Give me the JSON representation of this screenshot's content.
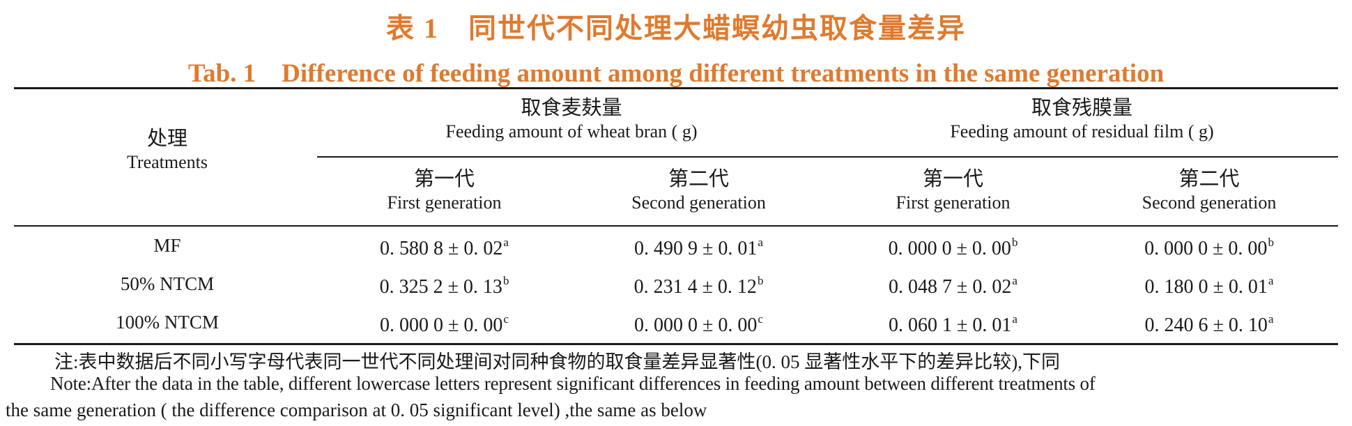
{
  "title": {
    "zh": "表 1　同世代不同处理大蜡螟幼虫取食量差异",
    "en": "Tab. 1　Difference of feeding amount among different treatments in the same generation"
  },
  "header": {
    "treatments_zh": "处理",
    "treatments_en": "Treatments",
    "group1_zh": "取食麦麸量",
    "group1_en": "Feeding amount of wheat bran ( g)",
    "group2_zh": "取食残膜量",
    "group2_en": "Feeding amount of residual film ( g)",
    "first_gen_zh": "第一代",
    "first_gen_en": "First generation",
    "second_gen_zh": "第二代",
    "second_gen_en": "Second generation"
  },
  "rows": [
    {
      "label": "MF",
      "values": [
        {
          "v": "0. 580 8 ± 0. 02",
          "s": "a"
        },
        {
          "v": "0. 490 9 ± 0. 01",
          "s": "a"
        },
        {
          "v": "0. 000 0 ± 0. 00",
          "s": "b"
        },
        {
          "v": "0. 000 0 ± 0. 00",
          "s": "b"
        }
      ]
    },
    {
      "label": "50% NTCM",
      "values": [
        {
          "v": "0. 325 2 ± 0. 13",
          "s": "b"
        },
        {
          "v": "0. 231 4 ± 0. 12",
          "s": "b"
        },
        {
          "v": "0. 048 7 ± 0. 02",
          "s": "a"
        },
        {
          "v": "0. 180 0 ± 0. 01",
          "s": "a"
        }
      ]
    },
    {
      "label": "100% NTCM",
      "values": [
        {
          "v": "0. 000 0 ± 0. 00",
          "s": "c"
        },
        {
          "v": "0. 000 0 ± 0. 00",
          "s": "c"
        },
        {
          "v": "0. 060 1 ± 0. 01",
          "s": "a"
        },
        {
          "v": "0. 240 6 ± 0. 10",
          "s": "a"
        }
      ]
    }
  ],
  "note": {
    "zh": "注:表中数据后不同小写字母代表同一世代不同处理间对同种食物的取食量差异显著性(0. 05 显著性水平下的差异比较),下同",
    "en_line1": "Note:After the data in the table, different lowercase letters represent significant differences in feeding amount between different treatments of",
    "en_line2": "the same generation ( the difference comparison at 0. 05 significant level) ,the same as below"
  }
}
